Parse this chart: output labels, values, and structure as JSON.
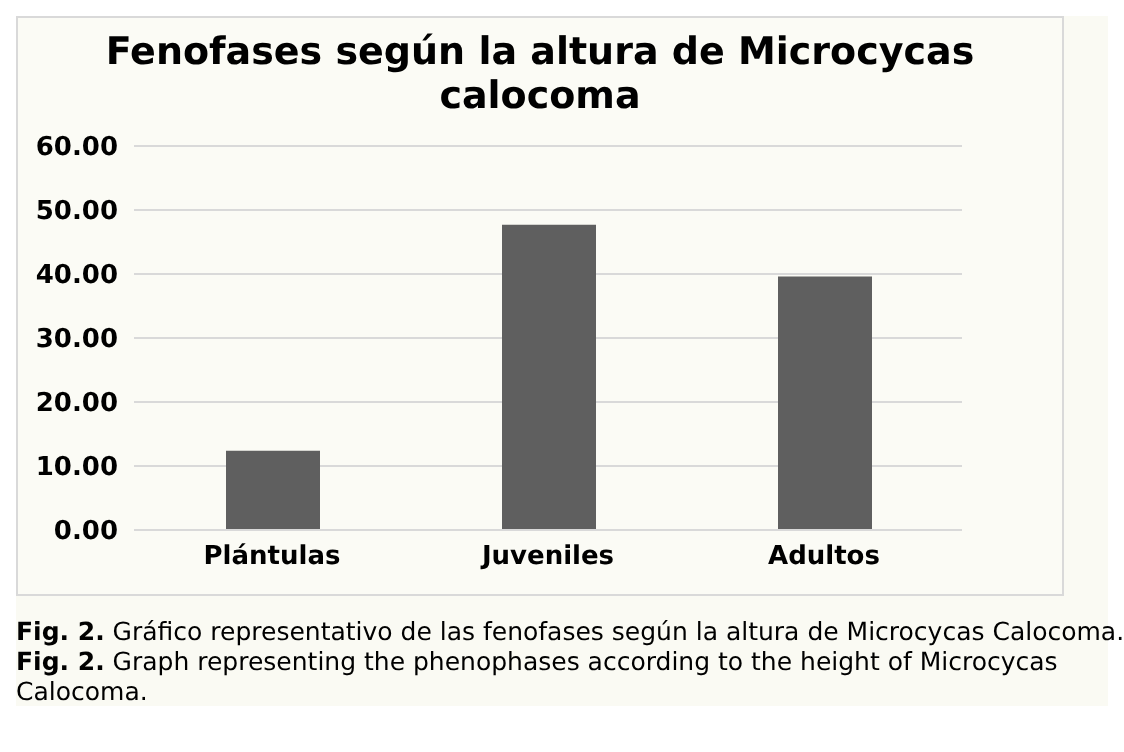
{
  "chart_data": {
    "type": "bar",
    "title": "Fenofases según la altura de Microcycas calocoma",
    "categories": [
      "Plántulas",
      "Juveniles",
      "Adultos"
    ],
    "values": [
      12.4,
      47.7,
      39.6
    ],
    "color": "#5f5f5f",
    "ylim": [
      0,
      60
    ],
    "yticks": [
      {
        "value": 0,
        "label": "0.00"
      },
      {
        "value": 10,
        "label": "10.00"
      },
      {
        "value": 20,
        "label": "20.00"
      },
      {
        "value": 30,
        "label": "30.00"
      },
      {
        "value": 40,
        "label": "40.00"
      },
      {
        "value": 50,
        "label": "50.00"
      },
      {
        "value": 60,
        "label": "60.00"
      }
    ],
    "grid": "y",
    "annotations": [
      "Fig. 2. Gráfico representativo de las fenofases según la altura de Microcycas Calocoma.",
      "Fig. 2. Graph representing the phenophases according to the height of Microcycas Calocoma."
    ]
  }
}
